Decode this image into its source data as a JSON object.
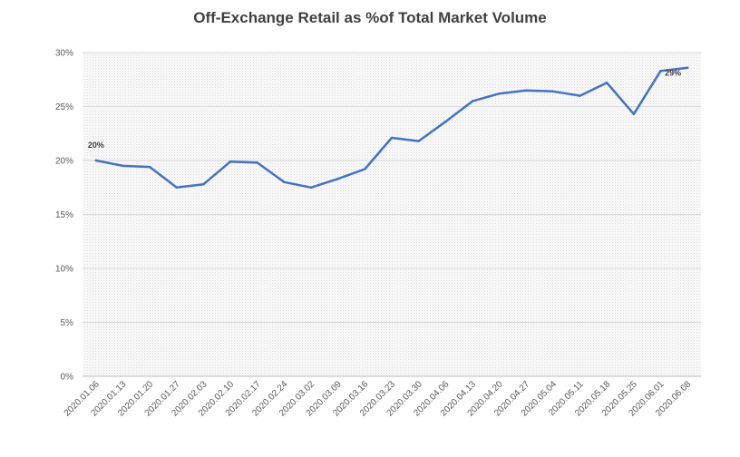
{
  "chart_data": {
    "type": "line",
    "title": "Off-Exchange Retail as %of Total Market Volume",
    "xlabel": "",
    "ylabel": "",
    "categories": [
      "2020.01.06",
      "2020.01.13",
      "2020.01.20",
      "2020.01.27",
      "2020.02.03",
      "2020.02.10",
      "2020.02.17",
      "2020.02.24",
      "2020.03.02",
      "2020.03.09",
      "2020.03.16",
      "2020.03.23",
      "2020.03.30",
      "2020.04.06",
      "2020.04.13",
      "2020.04.20",
      "2020.04.27",
      "2020.05.04",
      "2020.05.11",
      "2020.05.18",
      "2020.05.25",
      "2020.06.01",
      "2020.06.08"
    ],
    "series": [
      {
        "values": [
          20.0,
          19.5,
          19.4,
          17.5,
          17.8,
          19.9,
          19.8,
          18.0,
          17.5,
          18.3,
          19.2,
          22.1,
          21.8,
          23.6,
          25.5,
          26.2,
          26.5,
          26.4,
          26.0,
          27.2,
          24.3,
          28.3,
          28.6
        ],
        "color": "#4472C4"
      }
    ],
    "ylim": [
      0,
      30
    ],
    "yticks": [
      0,
      5,
      10,
      15,
      20,
      25,
      30
    ],
    "ytick_labels": [
      "0%",
      "5%",
      "10%",
      "15%",
      "20%",
      "25%",
      "30%"
    ],
    "data_labels": [
      {
        "index": 0,
        "text": "20%"
      },
      {
        "index": 22,
        "text": "29%"
      }
    ],
    "grid": true,
    "legend": "none",
    "plot_background": "dotted light gray"
  }
}
